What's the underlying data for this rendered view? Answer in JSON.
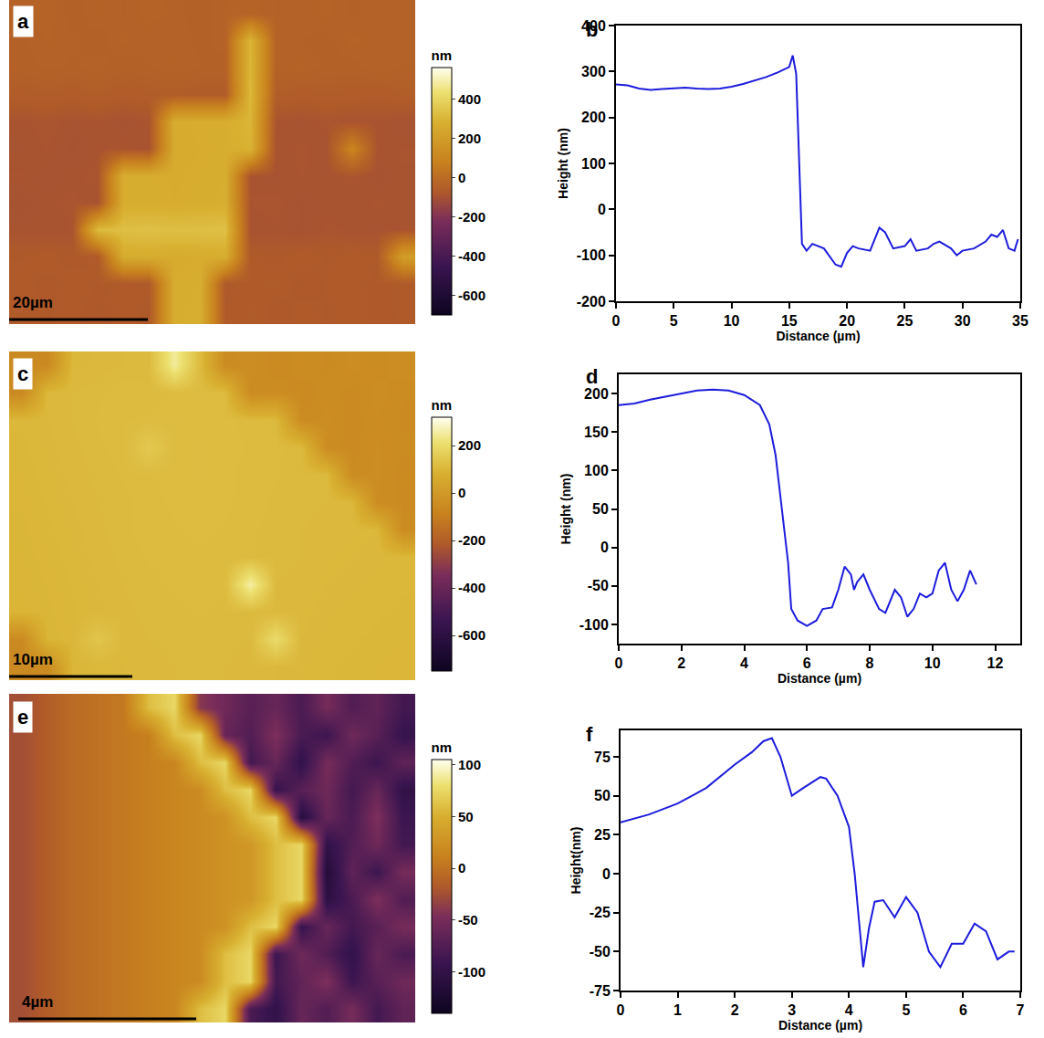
{
  "chart_data": [
    {
      "panel_label": "a",
      "type": "heatmap",
      "tick_labels": false,
      "annotations": [
        "20µm"
      ],
      "colorbar": {
        "title": "nm",
        "range": [
          -700,
          560
        ],
        "ticks": [
          -600,
          -400,
          -200,
          0,
          200,
          400
        ]
      },
      "z": [
        [
          -40,
          -35,
          -45,
          -38,
          -42,
          -36,
          -40,
          -44,
          -38,
          -35,
          -42,
          -40,
          -37,
          -43,
          -39,
          -41
        ],
        [
          -42,
          -38,
          -40,
          -45,
          -37,
          -41,
          -39,
          -43,
          -40,
          300,
          -38,
          -42,
          -44,
          -36,
          -40,
          -39
        ],
        [
          -45,
          -40,
          -43,
          -39,
          -46,
          -42,
          -38,
          -41,
          -44,
          305,
          -40,
          -37,
          -43,
          -45,
          -38,
          -42
        ],
        [
          -60,
          -58,
          -62,
          -55,
          -63,
          -59,
          -57,
          -61,
          -60,
          310,
          -56,
          -62,
          -58,
          -60,
          -64,
          -57
        ],
        [
          -90,
          -85,
          -92,
          -88,
          -95,
          -87,
          265,
          268,
          270,
          300,
          -88,
          -93,
          -86,
          -91,
          -89,
          -94
        ],
        [
          -92,
          -88,
          -95,
          -90,
          -86,
          -93,
          262,
          266,
          270,
          290,
          -91,
          -87,
          -94,
          100,
          -90,
          -88
        ],
        [
          -88,
          -94,
          -90,
          -86,
          270,
          268,
          265,
          268,
          272,
          -90,
          -93,
          -88,
          -92,
          -86,
          -95,
          -89
        ],
        [
          -95,
          -89,
          -87,
          -93,
          268,
          270,
          266,
          270,
          274,
          -88,
          -86,
          -94,
          -90,
          -92,
          -87,
          -91
        ],
        [
          -90,
          -92,
          -88,
          320,
          330,
          335,
          330,
          332,
          335,
          -92,
          -89,
          -95,
          -87,
          -90,
          -93,
          -88
        ],
        [
          -72,
          -68,
          -75,
          -70,
          265,
          268,
          262,
          266,
          270,
          -70,
          -74,
          -68,
          -72,
          -69,
          -71,
          200
        ],
        [
          -70,
          -74,
          -68,
          -72,
          -70,
          -69,
          268,
          272,
          -73,
          -70,
          -67,
          -75,
          -71,
          -68,
          -74,
          -70
        ],
        [
          -68,
          -72,
          -70,
          -75,
          -69,
          -73,
          270,
          275,
          -71,
          -68,
          -74,
          -70,
          -72,
          -69,
          -73,
          -71
        ]
      ]
    },
    {
      "panel_label": "b",
      "type": "line",
      "x_label": "Distance (µm)",
      "y_label": "Height (nm)",
      "xlim": [
        0,
        35
      ],
      "xticks": [
        0,
        5,
        10,
        15,
        20,
        25,
        30,
        35
      ],
      "ylim": [
        -200,
        400
      ],
      "yticks": [
        -200,
        -100,
        0,
        100,
        200,
        300,
        400
      ],
      "color": "#1c1cdc",
      "grid": false,
      "x": [
        0,
        1,
        2,
        3,
        4,
        5,
        6,
        7,
        8,
        9,
        10,
        11,
        12,
        13,
        14,
        15,
        15.3,
        15.6,
        16.1,
        16.5,
        17,
        18,
        19,
        19.5,
        20,
        20.5,
        21,
        22,
        22.8,
        23.3,
        24,
        25,
        25.5,
        26,
        27,
        27.5,
        28,
        29,
        29.5,
        30,
        31,
        32,
        32.5,
        33,
        33.5,
        34,
        34.5,
        34.8
      ],
      "values": [
        272,
        270,
        263,
        260,
        262,
        263,
        265,
        263,
        262,
        263,
        267,
        273,
        280,
        288,
        298,
        310,
        335,
        295,
        -75,
        -90,
        -75,
        -85,
        -120,
        -125,
        -95,
        -80,
        -85,
        -90,
        -40,
        -50,
        -85,
        -80,
        -65,
        -90,
        -85,
        -75,
        -70,
        -85,
        -100,
        -90,
        -85,
        -70,
        -55,
        -60,
        -45,
        -85,
        -90,
        -65
      ]
    },
    {
      "panel_label": "c",
      "type": "heatmap",
      "tick_labels": false,
      "annotations": [
        "10µm"
      ],
      "colorbar": {
        "title": "nm",
        "range": [
          -750,
          320
        ],
        "ticks": [
          -600,
          -400,
          -200,
          0,
          200
        ]
      },
      "z": [
        [
          -60,
          -55,
          105,
          108,
          110,
          112,
          250,
          114,
          -50,
          -45,
          -55,
          -48,
          -52,
          -46,
          -50,
          -44
        ],
        [
          -58,
          108,
          110,
          112,
          115,
          113,
          116,
          118,
          115,
          -52,
          -47,
          -55,
          -49,
          -53,
          -45,
          -51
        ],
        [
          104,
          107,
          110,
          113,
          115,
          116,
          118,
          117,
          116,
          114,
          112,
          -50,
          -46,
          -54,
          -48,
          -52
        ],
        [
          103,
          106,
          109,
          112,
          114,
          150,
          116,
          118,
          117,
          115,
          113,
          112,
          -49,
          -53,
          -47,
          -50
        ],
        [
          102,
          105,
          108,
          111,
          113,
          115,
          117,
          118,
          116,
          114,
          113,
          111,
          110,
          -51,
          -46,
          -54
        ],
        [
          101,
          104,
          107,
          110,
          112,
          114,
          116,
          117,
          116,
          114,
          112,
          111,
          110,
          108,
          -48,
          -52
        ],
        [
          100,
          103,
          106,
          109,
          112,
          114,
          115,
          116,
          115,
          113,
          112,
          110,
          109,
          108,
          107,
          -50
        ],
        [
          99,
          102,
          105,
          108,
          111,
          113,
          114,
          115,
          114,
          113,
          111,
          110,
          108,
          107,
          106,
          105
        ],
        [
          98,
          101,
          104,
          107,
          110,
          112,
          113,
          114,
          113,
          260,
          110,
          109,
          107,
          106,
          105,
          104
        ],
        [
          97,
          100,
          103,
          106,
          109,
          111,
          112,
          113,
          112,
          111,
          109,
          108,
          106,
          105,
          104,
          103
        ],
        [
          -55,
          99,
          102,
          140,
          108,
          110,
          111,
          112,
          111,
          110,
          200,
          107,
          105,
          104,
          103,
          102
        ],
        [
          -60,
          -52,
          101,
          104,
          107,
          109,
          110,
          111,
          110,
          109,
          107,
          106,
          104,
          103,
          102,
          101
        ]
      ]
    },
    {
      "panel_label": "d",
      "type": "line",
      "x_label": "Distance (µm)",
      "y_label": "Height (nm)",
      "xlim": [
        0,
        12.8
      ],
      "xticks": [
        0,
        2,
        4,
        6,
        8,
        10,
        12
      ],
      "ylim": [
        -125,
        225
      ],
      "yticks": [
        -100,
        -50,
        0,
        50,
        100,
        150,
        200
      ],
      "color": "#1c1cdc",
      "grid": false,
      "x": [
        0,
        0.5,
        1,
        1.5,
        2,
        2.5,
        3,
        3.5,
        4,
        4.5,
        4.8,
        5,
        5.2,
        5.4,
        5.5,
        5.7,
        6,
        6.3,
        6.5,
        6.8,
        7,
        7.2,
        7.4,
        7.5,
        7.6,
        7.8,
        8,
        8.3,
        8.5,
        8.8,
        9,
        9.2,
        9.4,
        9.6,
        9.8,
        10,
        10.2,
        10.4,
        10.6,
        10.8,
        11,
        11.2,
        11.4
      ],
      "values": [
        185,
        187,
        192,
        196,
        200,
        204,
        205,
        204,
        198,
        185,
        160,
        120,
        50,
        -20,
        -80,
        -95,
        -102,
        -95,
        -80,
        -78,
        -55,
        -25,
        -35,
        -55,
        -45,
        -35,
        -55,
        -80,
        -85,
        -55,
        -65,
        -90,
        -80,
        -60,
        -65,
        -60,
        -30,
        -20,
        -55,
        -70,
        -55,
        -30,
        -48
      ]
    },
    {
      "panel_label": "e",
      "type": "heatmap",
      "tick_labels": false,
      "annotations": [
        "4µm"
      ],
      "colorbar": {
        "title": "nm",
        "range": [
          -140,
          105
        ],
        "ticks": [
          -100,
          -50,
          0,
          50,
          100
        ]
      },
      "z": [
        [
          -25,
          -15,
          -5,
          0,
          5,
          60,
          75,
          -40,
          -55,
          -70,
          -60,
          -80,
          -50,
          -75,
          -65,
          -85
        ],
        [
          -25,
          -15,
          -5,
          0,
          5,
          10,
          60,
          75,
          -60,
          -75,
          -45,
          -80,
          -90,
          -55,
          -70,
          -95
        ],
        [
          -25,
          -15,
          -5,
          0,
          5,
          10,
          15,
          60,
          75,
          -85,
          -60,
          -100,
          -50,
          -75,
          -90,
          -65
        ],
        [
          -25,
          -15,
          -5,
          0,
          5,
          10,
          15,
          20,
          60,
          75,
          -95,
          -70,
          -55,
          -85,
          -60,
          -100
        ],
        [
          -25,
          -15,
          -5,
          0,
          5,
          10,
          15,
          20,
          25,
          60,
          75,
          -110,
          -60,
          -80,
          -45,
          -90
        ],
        [
          -25,
          -15,
          -5,
          0,
          5,
          10,
          15,
          20,
          25,
          30,
          60,
          75,
          -100,
          -75,
          -55,
          -85
        ],
        [
          -25,
          -15,
          -5,
          0,
          5,
          10,
          15,
          20,
          25,
          30,
          60,
          75,
          -115,
          -65,
          -90,
          -50
        ],
        [
          -25,
          -15,
          -5,
          0,
          5,
          10,
          15,
          20,
          25,
          30,
          60,
          75,
          -105,
          -80,
          -45,
          -75
        ],
        [
          -25,
          -15,
          -5,
          0,
          5,
          10,
          15,
          20,
          25,
          60,
          75,
          -95,
          -60,
          -85,
          -70,
          -50
        ],
        [
          -25,
          -15,
          -5,
          0,
          5,
          10,
          15,
          20,
          60,
          75,
          -90,
          -55,
          -75,
          -100,
          -60,
          -80
        ],
        [
          -25,
          -15,
          -5,
          0,
          5,
          10,
          15,
          20,
          60,
          75,
          -85,
          -65,
          -45,
          -90,
          -70,
          -55
        ],
        [
          -25,
          -15,
          -5,
          0,
          5,
          10,
          15,
          60,
          75,
          -80,
          -100,
          -60,
          -75,
          -50,
          -85,
          -65
        ]
      ]
    },
    {
      "panel_label": "f",
      "type": "line",
      "x_label": "Distance (µm)",
      "y_label": "Height(nm)",
      "xlim": [
        0,
        7
      ],
      "xticks": [
        0,
        1,
        2,
        3,
        4,
        5,
        6,
        7
      ],
      "ylim": [
        -75,
        92
      ],
      "yticks": [
        -75,
        -50,
        -25,
        0,
        25,
        50,
        75
      ],
      "color": "#1c1cdc",
      "grid": false,
      "x": [
        0,
        0.5,
        1,
        1.5,
        2,
        2.3,
        2.5,
        2.65,
        2.8,
        3,
        3.2,
        3.5,
        3.6,
        3.8,
        4,
        4.1,
        4.2,
        4.25,
        4.35,
        4.45,
        4.6,
        4.8,
        5,
        5.2,
        5.4,
        5.6,
        5.8,
        6,
        6.2,
        6.4,
        6.6,
        6.8,
        6.9
      ],
      "values": [
        33,
        38,
        45,
        55,
        70,
        78,
        85,
        87,
        75,
        50,
        55,
        62,
        61,
        50,
        30,
        0,
        -40,
        -60,
        -35,
        -18,
        -17,
        -28,
        -15,
        -25,
        -50,
        -60,
        -45,
        -45,
        -32,
        -37,
        -55,
        -50,
        -50
      ]
    }
  ]
}
